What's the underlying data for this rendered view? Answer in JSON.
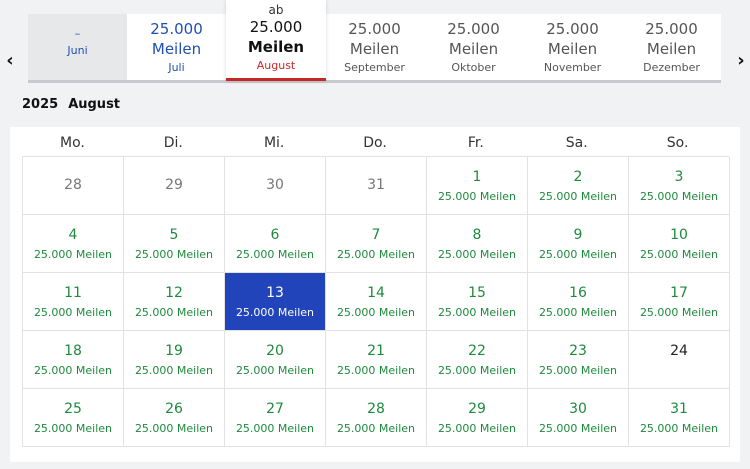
{
  "nav": {
    "prev": "‹",
    "next": "›"
  },
  "months": {
    "juni": {
      "dash": "–",
      "name": "Juni"
    },
    "juli": {
      "price1": "25.000",
      "price2": "Meilen",
      "name": "Juli"
    },
    "august": {
      "prefix": "ab",
      "price1": "25.000",
      "price2": "Meilen",
      "name": "August"
    },
    "september": {
      "price1": "25.000",
      "price2": "Meilen",
      "name": "September"
    },
    "oktober": {
      "price1": "25.000",
      "price2": "Meilen",
      "name": "Oktober"
    },
    "november": {
      "price1": "25.000",
      "price2": "Meilen",
      "name": "November"
    },
    "dezember": {
      "price1": "25.000",
      "price2": "Meilen",
      "name": "Dezember"
    }
  },
  "calendar": {
    "year": "2025",
    "month": "August",
    "weekdays": [
      "Mo.",
      "Di.",
      "Mi.",
      "Do.",
      "Fr.",
      "Sa.",
      "So."
    ],
    "selected_day": "13",
    "cells": [
      {
        "day": "28",
        "miles": "",
        "type": "other"
      },
      {
        "day": "29",
        "miles": "",
        "type": "other"
      },
      {
        "day": "30",
        "miles": "",
        "type": "other"
      },
      {
        "day": "31",
        "miles": "",
        "type": "other"
      },
      {
        "day": "1",
        "miles": "25.000 Meilen",
        "type": "avail"
      },
      {
        "day": "2",
        "miles": "25.000 Meilen",
        "type": "avail"
      },
      {
        "day": "3",
        "miles": "25.000 Meilen",
        "type": "avail"
      },
      {
        "day": "4",
        "miles": "25.000 Meilen",
        "type": "avail"
      },
      {
        "day": "5",
        "miles": "25.000 Meilen",
        "type": "avail"
      },
      {
        "day": "6",
        "miles": "25.000 Meilen",
        "type": "avail"
      },
      {
        "day": "7",
        "miles": "25.000 Meilen",
        "type": "avail"
      },
      {
        "day": "8",
        "miles": "25.000 Meilen",
        "type": "avail"
      },
      {
        "day": "9",
        "miles": "25.000 Meilen",
        "type": "avail"
      },
      {
        "day": "10",
        "miles": "25.000 Meilen",
        "type": "avail"
      },
      {
        "day": "11",
        "miles": "25.000 Meilen",
        "type": "avail"
      },
      {
        "day": "12",
        "miles": "25.000 Meilen",
        "type": "avail"
      },
      {
        "day": "13",
        "miles": "25.000 Meilen",
        "type": "selected"
      },
      {
        "day": "14",
        "miles": "25.000 Meilen",
        "type": "avail"
      },
      {
        "day": "15",
        "miles": "25.000 Meilen",
        "type": "avail"
      },
      {
        "day": "16",
        "miles": "25.000 Meilen",
        "type": "avail"
      },
      {
        "day": "17",
        "miles": "25.000 Meilen",
        "type": "avail"
      },
      {
        "day": "18",
        "miles": "25.000 Meilen",
        "type": "avail"
      },
      {
        "day": "19",
        "miles": "25.000 Meilen",
        "type": "avail"
      },
      {
        "day": "20",
        "miles": "25.000 Meilen",
        "type": "avail"
      },
      {
        "day": "21",
        "miles": "25.000 Meilen",
        "type": "avail"
      },
      {
        "day": "22",
        "miles": "25.000 Meilen",
        "type": "avail"
      },
      {
        "day": "23",
        "miles": "25.000 Meilen",
        "type": "avail"
      },
      {
        "day": "24",
        "miles": "",
        "type": "plain"
      },
      {
        "day": "25",
        "miles": "25.000 Meilen",
        "type": "avail"
      },
      {
        "day": "26",
        "miles": "25.000 Meilen",
        "type": "avail"
      },
      {
        "day": "27",
        "miles": "25.000 Meilen",
        "type": "avail"
      },
      {
        "day": "28",
        "miles": "25.000 Meilen",
        "type": "avail"
      },
      {
        "day": "29",
        "miles": "25.000 Meilen",
        "type": "avail"
      },
      {
        "day": "30",
        "miles": "25.000 Meilen",
        "type": "avail"
      },
      {
        "day": "31",
        "miles": "25.000 Meilen",
        "type": "avail"
      }
    ]
  },
  "colors": {
    "available_green": "#1e8a3c",
    "selected_blue": "#2244bb",
    "active_month_red": "#c62828",
    "juli_blue": "#1f4fb3"
  }
}
